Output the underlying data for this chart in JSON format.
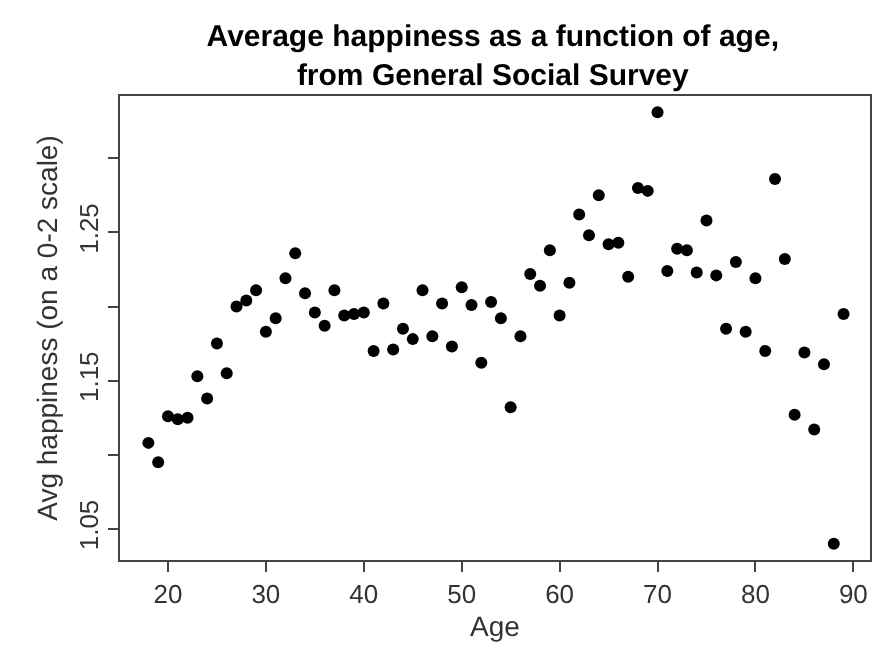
{
  "chart_data": {
    "type": "scatter",
    "title": "Average happiness as a function of age,\nfrom General Social Survey",
    "xlabel": "Age",
    "ylabel": "Avg happiness (on a 0-2 scale)",
    "x": [
      18,
      19,
      20,
      21,
      22,
      23,
      24,
      25,
      26,
      27,
      28,
      29,
      30,
      31,
      32,
      33,
      34,
      35,
      36,
      37,
      38,
      39,
      40,
      41,
      42,
      43,
      44,
      45,
      46,
      47,
      48,
      49,
      50,
      51,
      52,
      53,
      54,
      55,
      56,
      57,
      58,
      59,
      60,
      61,
      62,
      63,
      64,
      65,
      66,
      67,
      68,
      69,
      70,
      71,
      72,
      73,
      74,
      75,
      76,
      77,
      78,
      79,
      80,
      81,
      82,
      83,
      84,
      85,
      86,
      87,
      88,
      89
    ],
    "values": [
      1.108,
      1.095,
      1.126,
      1.124,
      1.125,
      1.153,
      1.138,
      1.175,
      1.155,
      1.2,
      1.204,
      1.211,
      1.183,
      1.192,
      1.219,
      1.236,
      1.209,
      1.196,
      1.187,
      1.211,
      1.194,
      1.195,
      1.196,
      1.17,
      1.202,
      1.171,
      1.185,
      1.178,
      1.211,
      1.18,
      1.202,
      1.173,
      1.213,
      1.201,
      1.162,
      1.203,
      1.192,
      1.132,
      1.18,
      1.222,
      1.214,
      1.238,
      1.194,
      1.216,
      1.262,
      1.248,
      1.275,
      1.242,
      1.243,
      1.22,
      1.28,
      1.278,
      1.331,
      1.224,
      1.239,
      1.238,
      1.223,
      1.258,
      1.221,
      1.185,
      1.23,
      1.183,
      1.219,
      1.17,
      1.286,
      1.232,
      1.127,
      1.169,
      1.117,
      1.161,
      1.04,
      1.195
    ],
    "color": "#000000",
    "marker": "circle",
    "xlim": [
      15.1,
      91.7
    ],
    "xticks": [
      20,
      30,
      40,
      50,
      60,
      70,
      80,
      90
    ],
    "ylim": [
      1.029,
      1.342
    ],
    "yticks": [
      1.05,
      {
        "value": 1.1,
        "label": null
      },
      1.15,
      {
        "value": 1.2,
        "label": null
      },
      1.25,
      {
        "value": 1.3,
        "label": null
      }
    ]
  }
}
